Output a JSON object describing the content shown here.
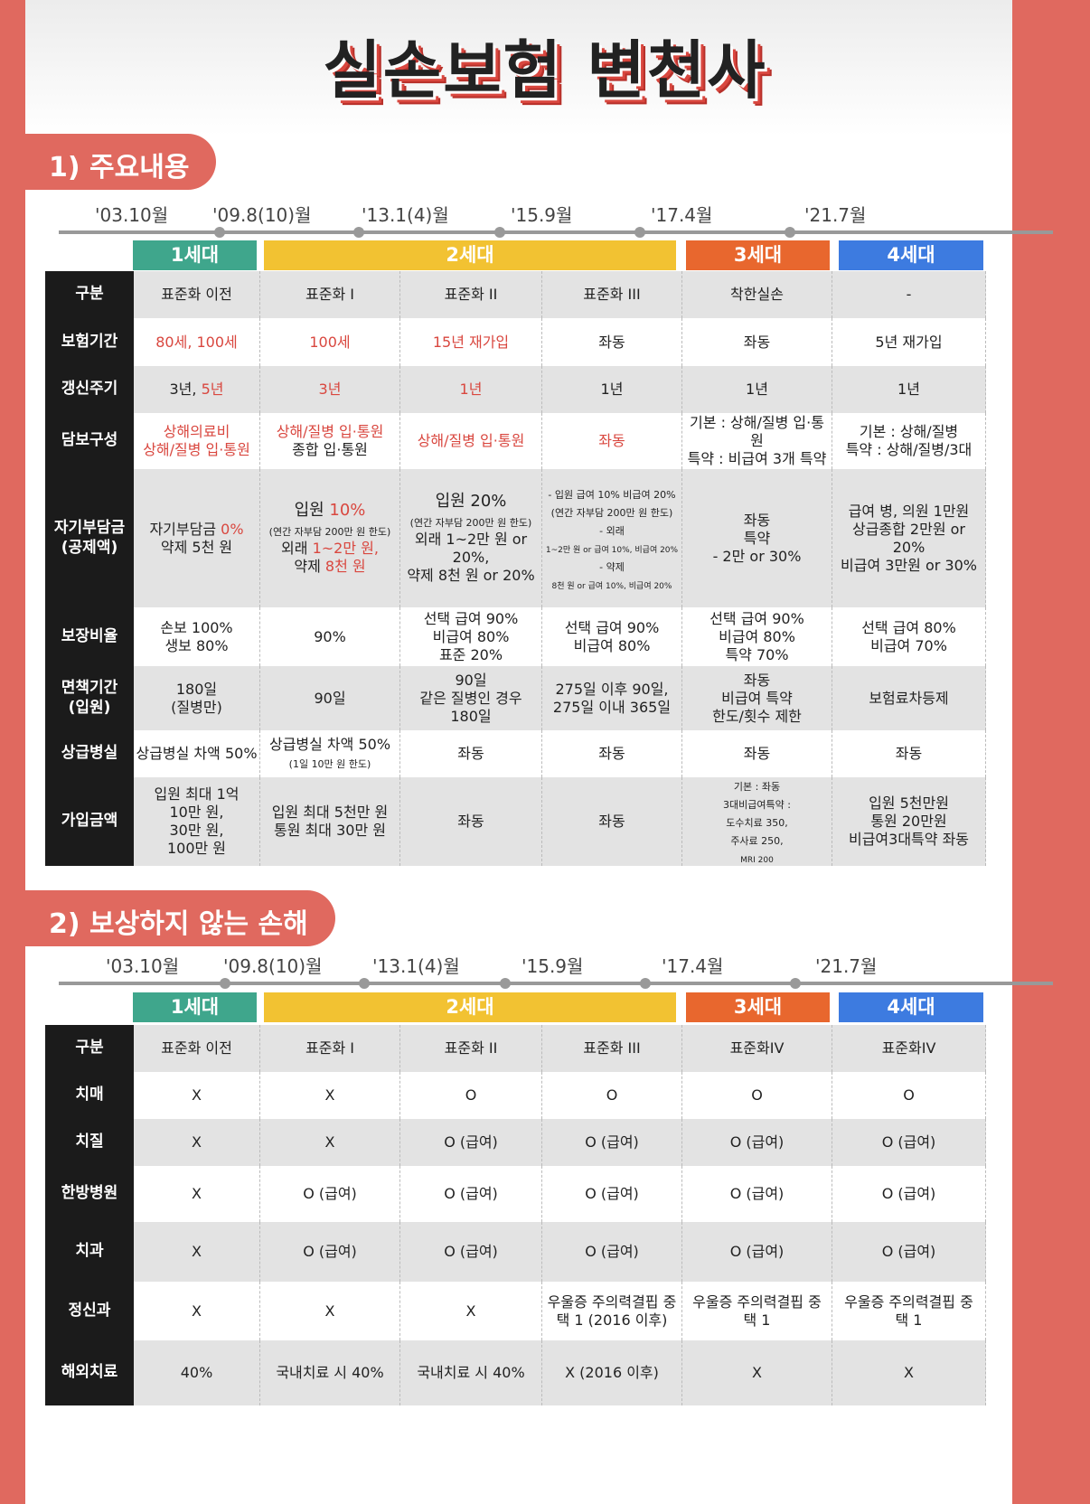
{
  "title": "실손보험 변천사",
  "colors": {
    "accent": "#e0695f",
    "gen1": "#3fa68c",
    "gen2": "#f2c232",
    "gen3": "#e8672e",
    "gen4": "#3d7be0",
    "red_text": "#d9473f"
  },
  "generations": [
    "1세대",
    "2세대",
    "3세대",
    "4세대"
  ],
  "timeline": [
    "'03.10월",
    "'09.8(10)월",
    "'13.1(4)월",
    "'15.9월",
    "'17.4월",
    "'21.7월"
  ],
  "section1": {
    "title": "1) 주요내용",
    "rows": [
      {
        "label": [
          "구분"
        ],
        "cells": [
          [
            "표준화 이전"
          ],
          [
            "표준화 I"
          ],
          [
            "표준화 II"
          ],
          [
            "표준화 III"
          ],
          [
            "착한실손"
          ],
          [
            "-"
          ]
        ]
      },
      {
        "label": [
          "보험기간"
        ],
        "cells": [
          [
            [
              [
                "80세, 100세",
                "r"
              ]
            ]
          ],
          [
            [
              [
                "100세",
                "r"
              ]
            ]
          ],
          [
            [
              [
                "15년 재가입",
                "r"
              ]
            ]
          ],
          [
            "좌동"
          ],
          [
            "좌동"
          ],
          [
            "5년 재가입"
          ]
        ]
      },
      {
        "label": [
          "갱신주기"
        ],
        "cells": [
          [
            [
              [
                "3년, ",
                ""
              ],
              [
                "5년",
                "r"
              ]
            ]
          ],
          [
            [
              [
                "3년",
                "r"
              ]
            ]
          ],
          [
            [
              [
                "1년",
                "r"
              ]
            ]
          ],
          [
            "1년"
          ],
          [
            "1년"
          ],
          [
            "1년"
          ]
        ]
      },
      {
        "label": [
          "담보구성"
        ],
        "cells": [
          [
            [
              [
                "상해의료비",
                "r"
              ]
            ],
            [
              [
                "상해/질병 입·통원",
                "r"
              ]
            ]
          ],
          [
            [
              [
                "상해/질병 입·통원",
                "r"
              ]
            ],
            "종합 입·통원"
          ],
          [
            [
              [
                "상해/질병 입·통원",
                "r"
              ]
            ]
          ],
          [
            [
              [
                "좌동",
                "r"
              ]
            ]
          ],
          [
            "기본 : 상해/질병 입·통원",
            "특약 : 비급여 3개 특약"
          ],
          [
            "기본 : 상해/질병",
            "특약 : 상해/질병/3대"
          ]
        ]
      },
      {
        "label": [
          "자기부담금",
          "(공제액)"
        ],
        "cells": [
          [
            [
              [
                "자기부담금 ",
                ""
              ],
              [
                "0%",
                "r"
              ]
            ],
            "약제 5천 원"
          ],
          [
            [
              [
                "입원 ",
                "big"
              ],
              [
                "10%",
                "r big"
              ]
            ],
            [
              [
                "(연간 자부담 200만 원 한도)",
                "s"
              ]
            ],
            [
              [
                "외래 ",
                ""
              ],
              [
                "1~2만 원,",
                "r"
              ]
            ],
            [
              [
                "약제 ",
                ""
              ],
              [
                "8천 원",
                "r"
              ]
            ]
          ],
          [
            [
              [
                "입원 20%",
                "big"
              ]
            ],
            [
              [
                "(연간 자부담 200만 원 한도)",
                "s"
              ]
            ],
            "외래 1~2만 원 or 20%,",
            "약제 8천 원 or 20%"
          ],
          [
            [
              [
                "- 입원 급여 10% 비급여 20%",
                "s"
              ]
            ],
            [
              [
                "(연간 자부담 200만 원 한도)",
                "s"
              ]
            ],
            [
              [
                "- 외래",
                "s"
              ]
            ],
            [
              [
                "1~2만 원 or 급여 10%, 비급여 20%",
                "t"
              ]
            ],
            [
              [
                "- 약제",
                "s"
              ]
            ],
            [
              [
                "8천 원 or 급여 10%, 비급여 20%",
                "t"
              ]
            ]
          ],
          [
            "좌동",
            " ",
            "특약",
            "- 2만 or 30%"
          ],
          [
            "급여 병, 의원 1만원",
            "상급종합 2만원 or 20%",
            "비급여 3만원 or 30%"
          ]
        ]
      },
      {
        "label": [
          "보장비율"
        ],
        "cells": [
          [
            "손보 100%",
            "생보 80%"
          ],
          [
            "90%"
          ],
          [
            "선택 급여 90%",
            "비급여 80%",
            "표준 20%"
          ],
          [
            "선택 급여 90%",
            "비급여 80%"
          ],
          [
            "선택 급여 90%",
            "비급여 80%",
            "특약 70%"
          ],
          [
            "선택 급여 80%",
            "비급여 70%"
          ]
        ]
      },
      {
        "label": [
          "면책기간",
          "(입원)"
        ],
        "cells": [
          [
            "180일",
            "(질병만)"
          ],
          [
            "90일"
          ],
          [
            "90일",
            "같은 질병인 경우",
            "180일"
          ],
          [
            "275일 이후 90일,",
            "275일 이내 365일"
          ],
          [
            "좌동",
            "비급여 특약",
            "한도/횟수 제한"
          ],
          [
            "보험료차등제"
          ]
        ]
      },
      {
        "label": [
          "상급병실"
        ],
        "cells": [
          [
            "상급병실 차액 50%"
          ],
          [
            "상급병실 차액 50%",
            [
              [
                "(1일 10만 원 한도)",
                "s"
              ]
            ]
          ],
          [
            "좌동"
          ],
          [
            "좌동"
          ],
          [
            "좌동"
          ],
          [
            "좌동"
          ]
        ]
      },
      {
        "label": [
          "가입금액"
        ],
        "cells": [
          [
            "입원 최대 1억",
            "10만 원,",
            "30만 원,",
            "100만 원"
          ],
          [
            "입원 최대 5천만 원",
            "통원 최대 30만 원"
          ],
          [
            "좌동"
          ],
          [
            "좌동"
          ],
          [
            [
              [
                "기본 : 좌동",
                "s"
              ]
            ],
            [
              [
                "3대비급여특약 :",
                "s"
              ]
            ],
            [
              [
                "도수치료 350,",
                "s"
              ]
            ],
            [
              [
                "주사료 250,",
                "s"
              ]
            ],
            [
              [
                "MRI 200",
                "t"
              ]
            ]
          ],
          [
            "입원 5천만원",
            "통원 20만원",
            "비급여3대특약 좌동"
          ]
        ]
      }
    ]
  },
  "section2": {
    "title": "2) 보상하지 않는 손해",
    "rows": [
      {
        "label": [
          "구분"
        ],
        "cells": [
          [
            "표준화 이전"
          ],
          [
            "표준화 I"
          ],
          [
            "표준화 II"
          ],
          [
            "표준화 III"
          ],
          [
            "표준화IV"
          ],
          [
            "표준화IV"
          ]
        ]
      },
      {
        "label": [
          "치매"
        ],
        "cells": [
          [
            "X"
          ],
          [
            "X"
          ],
          [
            "O"
          ],
          [
            "O"
          ],
          [
            "O"
          ],
          [
            "O"
          ]
        ]
      },
      {
        "label": [
          "치질"
        ],
        "cells": [
          [
            "X"
          ],
          [
            "X"
          ],
          [
            "O (급여)"
          ],
          [
            "O (급여)"
          ],
          [
            "O (급여)"
          ],
          [
            "O (급여)"
          ]
        ]
      },
      {
        "label": [
          "한방병원"
        ],
        "cells": [
          [
            "X"
          ],
          [
            "O (급여)"
          ],
          [
            "O (급여)"
          ],
          [
            "O (급여)"
          ],
          [
            "O (급여)"
          ],
          [
            "O (급여)"
          ]
        ]
      },
      {
        "label": [
          "치과"
        ],
        "cells": [
          [
            "X"
          ],
          [
            "O (급여)"
          ],
          [
            "O (급여)"
          ],
          [
            "O (급여)"
          ],
          [
            "O (급여)"
          ],
          [
            "O (급여)"
          ]
        ]
      },
      {
        "label": [
          "정신과"
        ],
        "cells": [
          [
            "X"
          ],
          [
            "X"
          ],
          [
            "X"
          ],
          [
            "우울증 주의력결핍 중",
            "택 1 (2016 이후)"
          ],
          [
            "우울증 주의력결핍 중",
            "택 1"
          ],
          [
            "우울증 주의력결핍 중",
            "택 1"
          ]
        ]
      },
      {
        "label": [
          "해외치료"
        ],
        "cells": [
          [
            "40%"
          ],
          [
            "국내치료 시 40%"
          ],
          [
            "국내치료 시 40%"
          ],
          [
            "X (2016 이후)"
          ],
          [
            "X"
          ],
          [
            "X"
          ]
        ]
      }
    ]
  }
}
